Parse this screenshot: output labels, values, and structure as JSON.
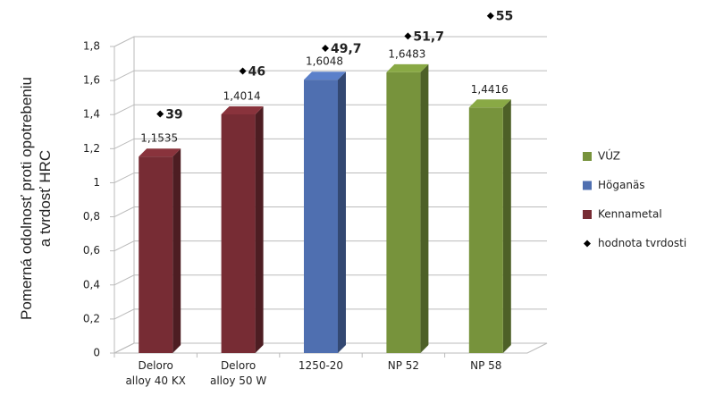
{
  "chart_data": {
    "type": "bar",
    "ylabel": "Pomerná odolnosť proti opotrebeniu\na tvrdosť HRC",
    "categories": [
      "Deloro\nalloy 40 KX",
      "Deloro\nalloy 50 W",
      "1250-20",
      "NP 52",
      "NP 58"
    ],
    "ylim": [
      0,
      1.8
    ],
    "yticks": [
      {
        "value": 0,
        "label": "0"
      },
      {
        "value": 0.2,
        "label": "0,2"
      },
      {
        "value": 0.4,
        "label": "0,4"
      },
      {
        "value": 0.6,
        "label": "0,6"
      },
      {
        "value": 0.8,
        "label": "0,8"
      },
      {
        "value": 1,
        "label": "1"
      },
      {
        "value": 1.2,
        "label": "1,2"
      },
      {
        "value": 1.4,
        "label": "1,4"
      },
      {
        "value": 1.6,
        "label": "1,6"
      },
      {
        "value": 1.8,
        "label": "1,8"
      }
    ],
    "y2lim": [
      0,
      50
    ],
    "grid": true,
    "legend": "right",
    "series": [
      {
        "name": "VÚZ",
        "color": "#77933c",
        "values": [
          null,
          null,
          null,
          1.6483,
          1.4416
        ],
        "value_labels": [
          null,
          null,
          null,
          "1,6483",
          "1,4416"
        ]
      },
      {
        "name": "Höganäs",
        "color": "#4f6fb0",
        "values": [
          null,
          null,
          1.6048,
          null,
          null
        ],
        "value_labels": [
          null,
          null,
          "1,6048",
          null,
          null
        ]
      },
      {
        "name": "Kennametal",
        "color": "#772c34",
        "values": [
          1.1535,
          1.4014,
          null,
          null,
          null
        ],
        "value_labels": [
          "1,1535",
          "1,4014",
          null,
          null,
          null
        ]
      },
      {
        "name": "hodnota tvrdosti",
        "type": "scatter",
        "axis": "y2",
        "color": "#000000",
        "values": [
          39,
          46,
          49.7,
          51.7,
          55
        ],
        "value_labels": [
          "39",
          "46",
          "49,7",
          "51,7",
          "55"
        ]
      }
    ]
  }
}
